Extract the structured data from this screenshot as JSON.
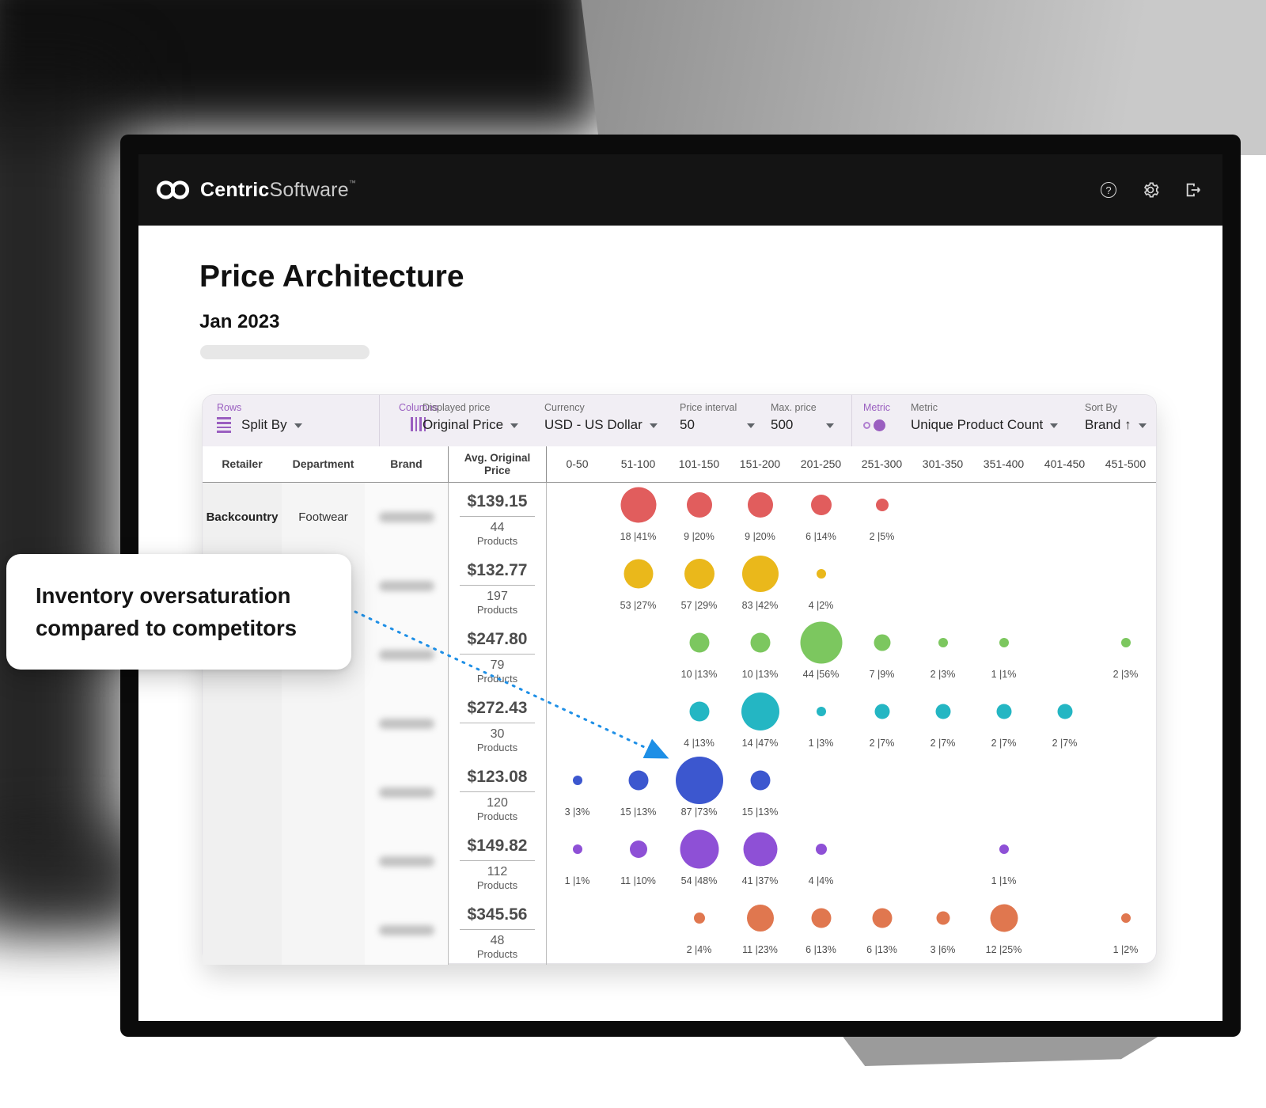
{
  "topbar": {
    "logo_bold": "Centric",
    "logo_light": "Software",
    "tm_mark": "™"
  },
  "page": {
    "title": "Price Architecture",
    "subtitle": "Jan 2023"
  },
  "callout": {
    "text": "Inventory oversaturation compared to competitors"
  },
  "toolbar": {
    "rows": {
      "label": "Rows",
      "value": "Split By"
    },
    "columns": {
      "label": "Columns"
    },
    "displayed_price": {
      "label": "Displayed price",
      "value": "Original Price"
    },
    "currency": {
      "label": "Currency",
      "value": "USD - US Dollar"
    },
    "price_interval": {
      "label": "Price interval",
      "value": "50"
    },
    "max_price": {
      "label": "Max. price",
      "value": "500"
    },
    "metric_icon_label": "Metric",
    "metric": {
      "label": "Metric",
      "value": "Unique Product Count"
    },
    "sort_by": {
      "label": "Sort By",
      "value": "Brand ↑"
    }
  },
  "table": {
    "headers": {
      "retailer": "Retailer",
      "department": "Department",
      "brand": "Brand",
      "avg_price": "Avg. Original Price"
    },
    "products_label": "Products",
    "buckets": [
      "0-50",
      "51-100",
      "101-150",
      "151-200",
      "201-250",
      "251-300",
      "301-350",
      "351-400",
      "401-450",
      "451-500"
    ],
    "rows": [
      {
        "retailer": "Backcountry",
        "department": "Footwear",
        "brand_redacted": true,
        "avg_price": "$139.15",
        "count": "44",
        "color": "#e15d5d",
        "bubbles": [
          {
            "col": 1,
            "count": 18,
            "pct": 41
          },
          {
            "col": 2,
            "count": 9,
            "pct": 20
          },
          {
            "col": 3,
            "count": 9,
            "pct": 20
          },
          {
            "col": 4,
            "count": 6,
            "pct": 14
          },
          {
            "col": 5,
            "count": 2,
            "pct": 5
          }
        ]
      },
      {
        "retailer": "",
        "department": "",
        "brand_redacted": true,
        "avg_price": "$132.77",
        "count": "197",
        "color": "#eab81b",
        "bubbles": [
          {
            "col": 1,
            "count": 53,
            "pct": 27
          },
          {
            "col": 2,
            "count": 57,
            "pct": 29
          },
          {
            "col": 3,
            "count": 83,
            "pct": 42
          },
          {
            "col": 4,
            "count": 4,
            "pct": 2
          }
        ]
      },
      {
        "retailer": "",
        "department": "",
        "brand_redacted": true,
        "avg_price": "$247.80",
        "count": "79",
        "color": "#7cc75f",
        "bubbles": [
          {
            "col": 2,
            "count": 10,
            "pct": 13
          },
          {
            "col": 3,
            "count": 10,
            "pct": 13
          },
          {
            "col": 4,
            "count": 44,
            "pct": 56
          },
          {
            "col": 5,
            "count": 7,
            "pct": 9
          },
          {
            "col": 6,
            "count": 2,
            "pct": 3
          },
          {
            "col": 7,
            "count": 1,
            "pct": 1
          },
          {
            "col": 9,
            "count": 2,
            "pct": 3
          }
        ]
      },
      {
        "retailer": "",
        "department": "",
        "brand_redacted": true,
        "avg_price": "$272.43",
        "count": "30",
        "color": "#24b6c3",
        "bubbles": [
          {
            "col": 2,
            "count": 4,
            "pct": 13
          },
          {
            "col": 3,
            "count": 14,
            "pct": 47
          },
          {
            "col": 4,
            "count": 1,
            "pct": 3
          },
          {
            "col": 5,
            "count": 2,
            "pct": 7
          },
          {
            "col": 6,
            "count": 2,
            "pct": 7
          },
          {
            "col": 7,
            "count": 2,
            "pct": 7
          },
          {
            "col": 8,
            "count": 2,
            "pct": 7
          }
        ]
      },
      {
        "retailer": "",
        "department": "",
        "brand_redacted": true,
        "avg_price": "$123.08",
        "count": "120",
        "color": "#3c57cf",
        "bubbles": [
          {
            "col": 0,
            "count": 3,
            "pct": 3
          },
          {
            "col": 1,
            "count": 15,
            "pct": 13
          },
          {
            "col": 2,
            "count": 87,
            "pct": 73
          },
          {
            "col": 3,
            "count": 15,
            "pct": 13
          }
        ]
      },
      {
        "retailer": "",
        "department": "",
        "brand_redacted": true,
        "avg_price": "$149.82",
        "count": "112",
        "color": "#8e50d6",
        "bubbles": [
          {
            "col": 0,
            "count": 1,
            "pct": 1
          },
          {
            "col": 1,
            "count": 11,
            "pct": 10
          },
          {
            "col": 2,
            "count": 54,
            "pct": 48
          },
          {
            "col": 3,
            "count": 41,
            "pct": 37
          },
          {
            "col": 4,
            "count": 4,
            "pct": 4
          },
          {
            "col": 7,
            "count": 1,
            "pct": 1
          }
        ]
      },
      {
        "retailer": "",
        "department": "",
        "brand_redacted": true,
        "avg_price": "$345.56",
        "count": "48",
        "color": "#e0774f",
        "bubbles": [
          {
            "col": 2,
            "count": 2,
            "pct": 4
          },
          {
            "col": 3,
            "count": 11,
            "pct": 23
          },
          {
            "col": 4,
            "count": 6,
            "pct": 13
          },
          {
            "col": 5,
            "count": 6,
            "pct": 13
          },
          {
            "col": 6,
            "count": 3,
            "pct": 6
          },
          {
            "col": 7,
            "count": 12,
            "pct": 25
          },
          {
            "col": 9,
            "count": 1,
            "pct": 2
          }
        ]
      }
    ]
  }
}
